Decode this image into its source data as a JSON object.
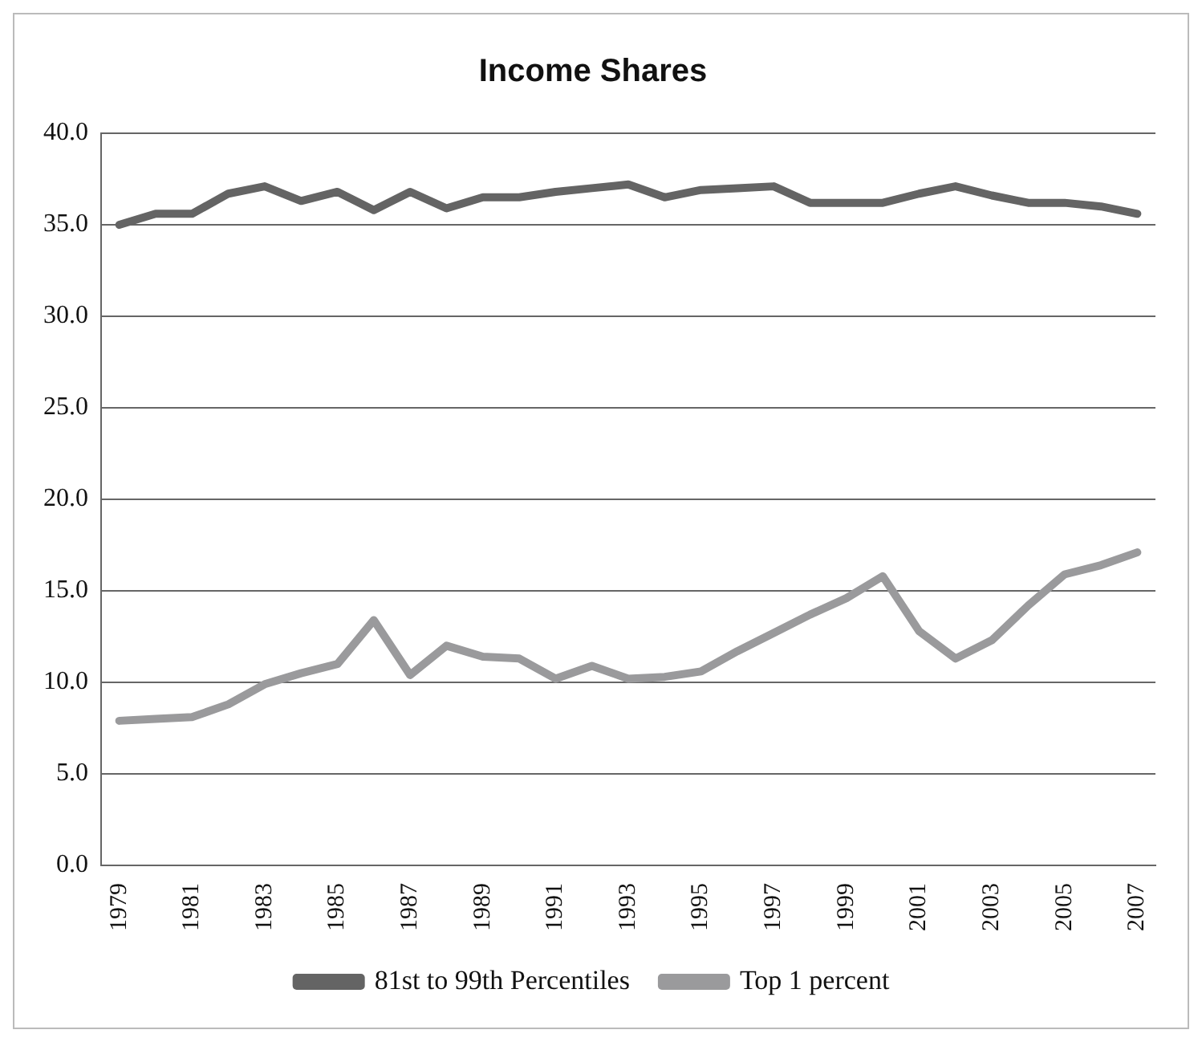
{
  "chart_data": {
    "type": "line",
    "title": "Income Shares",
    "categories": [
      "1979",
      null,
      "1981",
      null,
      "1983",
      null,
      "1985",
      null,
      "1987",
      null,
      "1989",
      null,
      "1991",
      null,
      "1993",
      null,
      "1995",
      null,
      "1997",
      null,
      "1999",
      null,
      "2001",
      null,
      "2003",
      null,
      "2005",
      null,
      "2007"
    ],
    "series": [
      {
        "name": "81st to 99th Percentiles",
        "color": "#646464",
        "values": [
          35.0,
          35.6,
          35.6,
          36.7,
          37.1,
          36.3,
          36.8,
          35.8,
          36.8,
          35.9,
          36.5,
          36.5,
          36.8,
          37.0,
          37.2,
          36.5,
          36.9,
          37.0,
          37.1,
          36.2,
          36.2,
          36.2,
          36.7,
          37.1,
          36.6,
          36.2,
          36.2,
          36.0,
          35.6
        ]
      },
      {
        "name": "Top 1 percent",
        "color": "#9a9a9c",
        "values": [
          7.9,
          8.0,
          8.1,
          8.8,
          9.9,
          10.5,
          11.0,
          13.4,
          10.4,
          12.0,
          11.4,
          11.3,
          10.2,
          10.9,
          10.2,
          10.3,
          10.6,
          11.7,
          12.7,
          13.7,
          14.6,
          15.8,
          12.8,
          11.3,
          12.3,
          14.2,
          15.9,
          16.4,
          17.1
        ]
      }
    ],
    "ylim": [
      0,
      40
    ],
    "yticks": [
      {
        "value": 0,
        "label": "0.0"
      },
      {
        "value": 5,
        "label": "5.0"
      },
      {
        "value": 10,
        "label": "10.0"
      },
      {
        "value": 15,
        "label": "15.0"
      },
      {
        "value": 20,
        "label": "20.0"
      },
      {
        "value": 25,
        "label": "25.0"
      },
      {
        "value": 30,
        "label": "30.0"
      },
      {
        "value": 35,
        "label": "35.0"
      },
      {
        "value": 40,
        "label": "40.0"
      }
    ],
    "grid": "y",
    "legend": "bottom",
    "marker": "none",
    "line_style": "solid"
  }
}
